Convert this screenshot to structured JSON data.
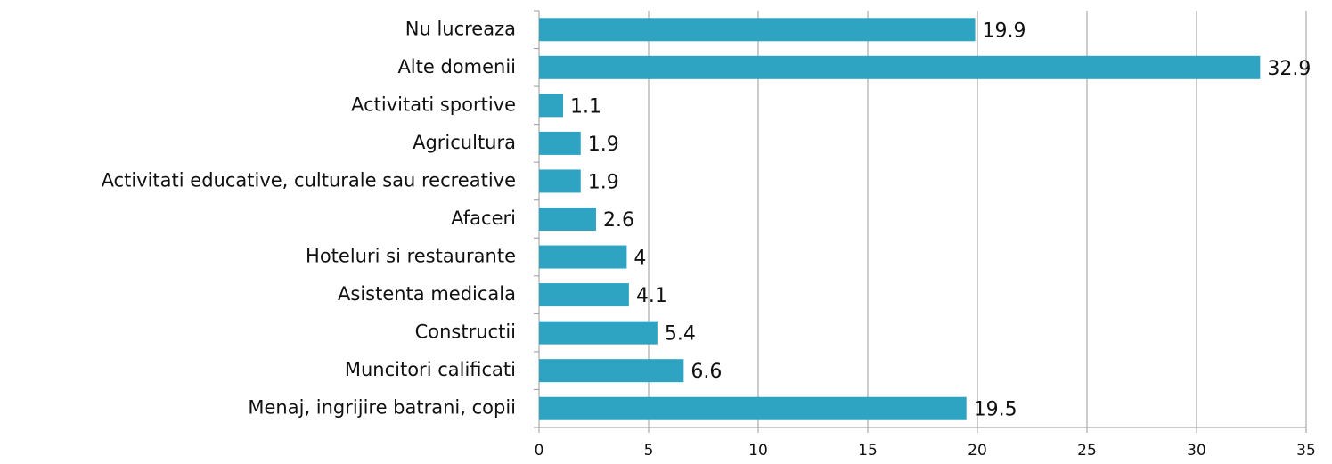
{
  "chart_data": {
    "type": "bar",
    "orientation": "horizontal",
    "categories": [
      "Nu lucreaza",
      "Alte domenii",
      "Activitati sportive",
      "Agricultura",
      "Activitati educative, culturale sau recreative",
      "Afaceri",
      "Hoteluri si restaurante",
      "Asistenta medicala",
      "Constructii",
      "Muncitori calificati",
      "Menaj, ingrijire batrani, copii"
    ],
    "values": [
      19.9,
      32.9,
      1.1,
      1.9,
      1.9,
      2.6,
      4,
      4.1,
      5.4,
      6.6,
      19.5
    ],
    "color": "#2ea3c2",
    "xlim": [
      0,
      35
    ],
    "xticks": [
      0,
      5,
      10,
      15,
      20,
      25,
      30,
      35
    ],
    "grid": true
  }
}
